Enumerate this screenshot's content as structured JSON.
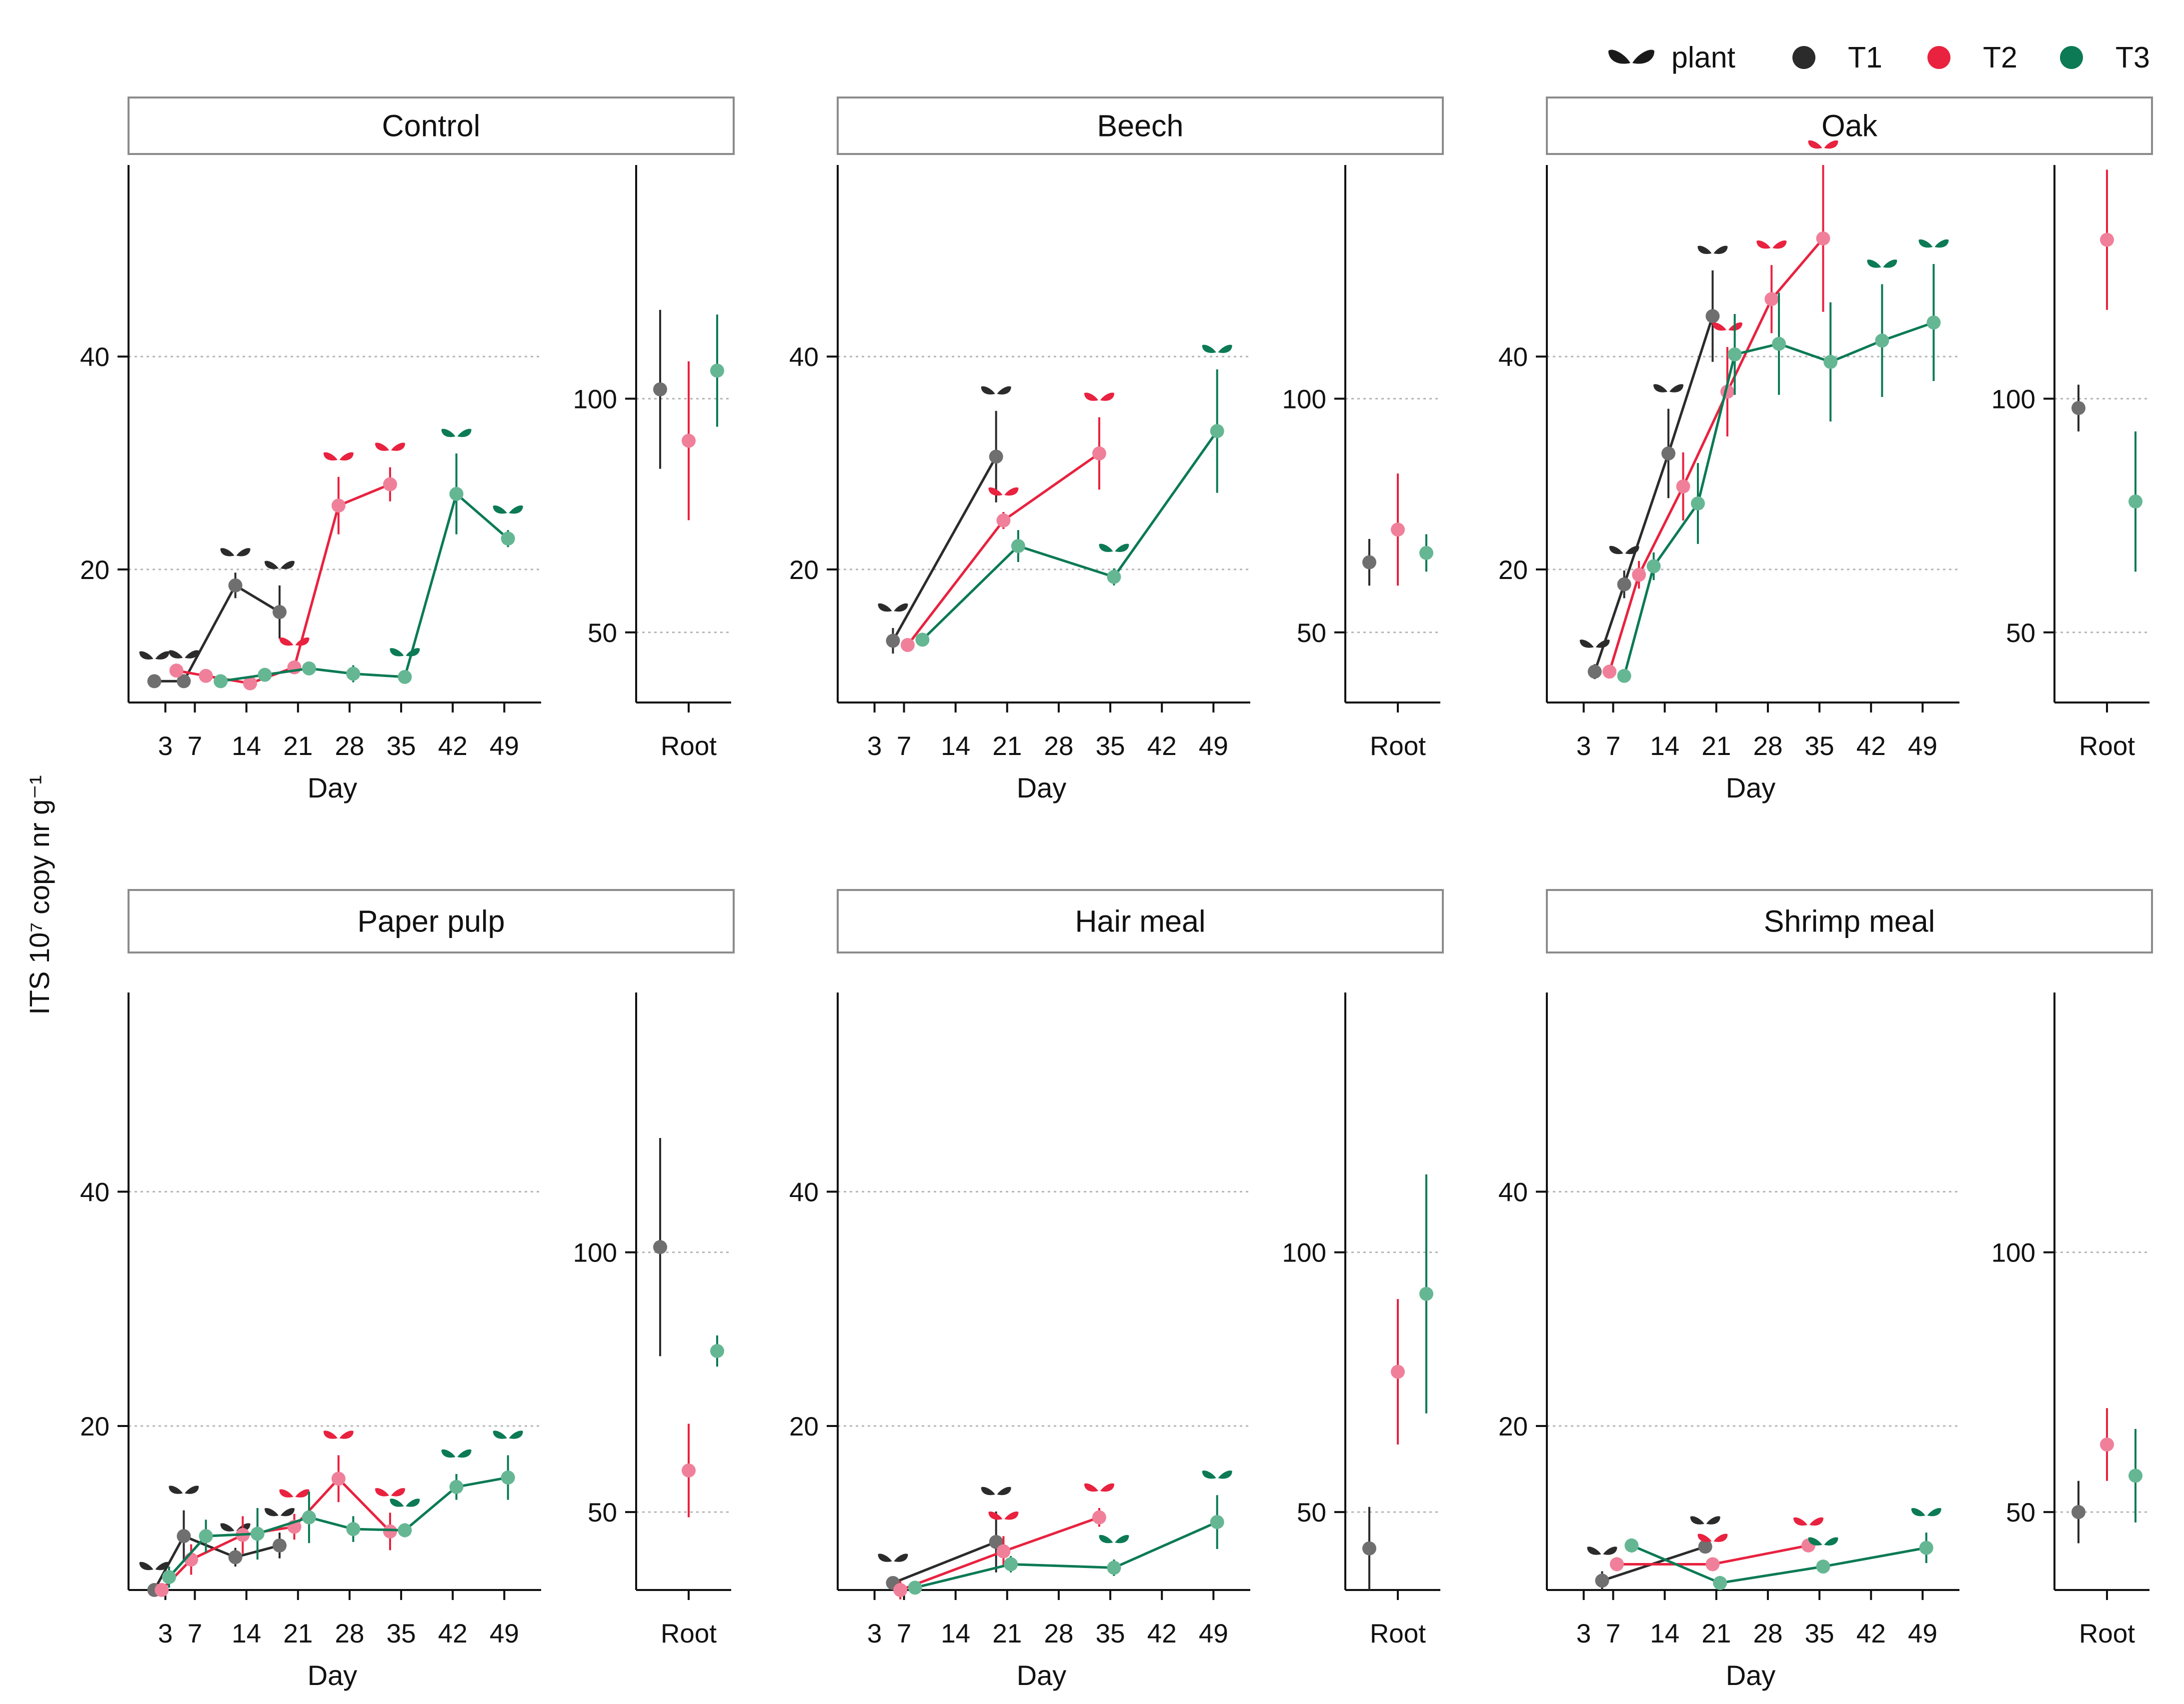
{
  "figure": {
    "y_axis_label": "ITS 10⁷ copy nr g⁻¹",
    "x_axis_label": "Day",
    "root_label": "Root"
  },
  "legend": [
    {
      "key": "plant",
      "label": "plant",
      "color": "#1a1a1a",
      "icon": "seedling-icon"
    },
    {
      "key": "T1",
      "label": "T1",
      "color": "#2b2b2b",
      "icon": "dot-icon"
    },
    {
      "key": "T2",
      "label": "T2",
      "color": "#e8223f",
      "icon": "dot-icon"
    },
    {
      "key": "T3",
      "label": "T3",
      "color": "#0b7a55",
      "icon": "dot-icon"
    }
  ],
  "colors": {
    "T1_line": "#2b2b2b",
    "T1_point": "#6f6f6f",
    "T2_line": "#e8223f",
    "T2_point": "#f0809a",
    "T3_line": "#0b7a55",
    "T3_point": "#65b794"
  },
  "chart_data": [
    {
      "type": "line",
      "title": "Control",
      "xlabel": "Day",
      "ylabel": "ITS 10⁷ copy nr g⁻¹",
      "x_ticks": [
        3,
        7,
        14,
        21,
        28,
        35,
        42,
        49
      ],
      "y_ticks": [
        20,
        40
      ],
      "ylim": [
        7.5,
        58
      ],
      "series": [
        {
          "name": "T1",
          "x": [
            1.5,
            5.5,
            12.5,
            18.5
          ],
          "y": [
            9.5,
            9.5,
            18.5,
            16
          ],
          "err": [
            0.5,
            0.6,
            1.2,
            2.5
          ],
          "plant_at": [
            0,
            1,
            2,
            3
          ]
        },
        {
          "name": "T2",
          "x": [
            4.5,
            8.5,
            14.5,
            20.5,
            26.5,
            33.5
          ],
          "y": [
            10.5,
            10,
            9.3,
            10.8,
            26,
            28
          ],
          "err": [
            0.4,
            0.4,
            0.4,
            0.5,
            2.7,
            1.6
          ],
          "plant_at": [
            3,
            4,
            5
          ]
        },
        {
          "name": "T3",
          "x": [
            10.5,
            16.5,
            22.5,
            28.5,
            35.5,
            42.5,
            49.5
          ],
          "y": [
            9.5,
            10.1,
            10.7,
            10.2,
            9.9,
            27.1,
            22.9
          ],
          "err": [
            0.4,
            0.4,
            0.4,
            0.8,
            0.4,
            3.8,
            0.8
          ],
          "plant_at": [
            4,
            5,
            6
          ]
        }
      ],
      "root": {
        "yticks": [
          50,
          100
        ],
        "ylim": [
          35,
          150
        ],
        "T1": {
          "value": 102,
          "err": 17
        },
        "T2": {
          "value": 91,
          "err": 17
        },
        "T3": {
          "value": 106,
          "err": 12
        }
      }
    },
    {
      "type": "line",
      "title": "Beech",
      "xlabel": "Day",
      "ylabel": "ITS 10⁷ copy nr g⁻¹",
      "x_ticks": [
        3,
        7,
        14,
        21,
        28,
        35,
        42,
        49
      ],
      "y_ticks": [
        20,
        40
      ],
      "ylim": [
        7.5,
        58
      ],
      "series": [
        {
          "name": "T1",
          "x": [
            5.5,
            19.5
          ],
          "y": [
            13.3,
            30.6
          ],
          "err": [
            1.2,
            4.3
          ],
          "plant_at": [
            0,
            1
          ]
        },
        {
          "name": "T2",
          "x": [
            7.5,
            20.5,
            33.5
          ],
          "y": [
            12.9,
            24.6,
            30.9
          ],
          "err": [
            0.4,
            0.8,
            3.4
          ],
          "plant_at": [
            1,
            2
          ]
        },
        {
          "name": "T3",
          "x": [
            9.5,
            22.5,
            35.5,
            49.5
          ],
          "y": [
            13.4,
            22.2,
            19.3,
            33
          ],
          "err": [
            0.5,
            1.5,
            0.8,
            5.8
          ],
          "plant_at": [
            2,
            3
          ]
        }
      ],
      "root": {
        "yticks": [
          50,
          100
        ],
        "ylim": [
          35,
          150
        ],
        "T1": {
          "value": 65,
          "err": 5
        },
        "T2": {
          "value": 72,
          "err": 12
        },
        "T3": {
          "value": 67,
          "err": 4
        }
      }
    },
    {
      "type": "line",
      "title": "Oak",
      "xlabel": "Day",
      "ylabel": "ITS 10⁷ copy nr g⁻¹",
      "x_ticks": [
        3,
        7,
        14,
        21,
        28,
        35,
        42,
        49
      ],
      "y_ticks": [
        20,
        40
      ],
      "ylim": [
        7.5,
        58
      ],
      "series": [
        {
          "name": "T1",
          "x": [
            4.5,
            8.5,
            14.5,
            20.5
          ],
          "y": [
            10.4,
            18.6,
            30.9,
            43.8
          ],
          "err": [
            0.7,
            1.3,
            4.2,
            4.3
          ],
          "plant_at": [
            0,
            1,
            2,
            3
          ]
        },
        {
          "name": "T2",
          "x": [
            6.5,
            10.5,
            16.5,
            22.5,
            28.5,
            35.5
          ],
          "y": [
            10.4,
            19.5,
            27.8,
            36.7,
            45.4,
            51.1
          ],
          "err": [
            0.5,
            1.3,
            3.2,
            4.2,
            3.2,
            6.9
          ],
          "plant_at": [
            3,
            4,
            5
          ]
        },
        {
          "name": "T3",
          "x": [
            8.5,
            12.5,
            18.5,
            23.5,
            29.5,
            36.5,
            43.5,
            50.5
          ],
          "y": [
            10,
            20.3,
            26.2,
            40.2,
            41.2,
            39.5,
            41.5,
            43.2
          ],
          "err": [
            0.4,
            1.3,
            3.8,
            3.8,
            4.8,
            5.6,
            5.3,
            5.5
          ],
          "plant_at": [
            6,
            7
          ]
        }
      ],
      "root": {
        "yticks": [
          50,
          100
        ],
        "ylim": [
          35,
          150
        ],
        "T1": {
          "value": 98,
          "err": 5
        },
        "T2": {
          "value": 134,
          "err": 15
        },
        "T3": {
          "value": 78,
          "err": 15
        }
      }
    },
    {
      "type": "line",
      "title": "Paper pulp",
      "xlabel": "Day",
      "ylabel": "ITS 10⁷ copy nr g⁻¹",
      "x_ticks": [
        3,
        7,
        14,
        21,
        28,
        35,
        42,
        49
      ],
      "y_ticks": [
        20,
        40
      ],
      "ylim": [
        6,
        57
      ],
      "series": [
        {
          "name": "T1",
          "x": [
            1.5,
            5.5,
            12.5,
            18.5
          ],
          "y": [
            6,
            10.6,
            8.8,
            9.8
          ],
          "err": [
            0.3,
            2.2,
            0.8,
            1.1
          ],
          "plant_at": [
            0,
            1,
            2,
            3
          ]
        },
        {
          "name": "T2",
          "x": [
            2.5,
            6.5,
            13.5,
            20.5,
            26.5,
            33.5
          ],
          "y": [
            6,
            8.6,
            10.7,
            11.4,
            15.5,
            11
          ],
          "err": [
            0.4,
            1.3,
            1.6,
            1.1,
            2,
            1.6
          ],
          "plant_at": [
            3,
            4,
            5
          ]
        },
        {
          "name": "T3",
          "x": [
            3.5,
            8.5,
            15.5,
            22.5,
            28.5,
            35.5,
            42.5,
            49.5
          ],
          "y": [
            7.1,
            10.6,
            10.8,
            12.2,
            11.2,
            11.1,
            14.8,
            15.6
          ],
          "err": [
            0.9,
            1.4,
            2.2,
            2.2,
            1.1,
            0.6,
            1.1,
            1.9
          ],
          "plant_at": [
            5,
            6,
            7
          ]
        }
      ],
      "root": {
        "yticks": [
          50,
          100
        ],
        "ylim": [
          35,
          150
        ],
        "T1": {
          "value": 101,
          "err": 21
        },
        "T2": {
          "value": 58,
          "err": 9
        },
        "T3": {
          "value": 81,
          "err": 3
        }
      }
    },
    {
      "type": "line",
      "title": "Hair meal",
      "xlabel": "Day",
      "ylabel": "ITS 10⁷ copy nr g⁻¹",
      "x_ticks": [
        3,
        7,
        14,
        21,
        28,
        35,
        42,
        49
      ],
      "y_ticks": [
        20,
        40
      ],
      "ylim": [
        6,
        57
      ],
      "series": [
        {
          "name": "T1",
          "x": [
            5.5,
            19.5
          ],
          "y": [
            6.6,
            10.1
          ],
          "err": [
            0.4,
            2.6
          ],
          "plant_at": [
            0,
            1
          ]
        },
        {
          "name": "T2",
          "x": [
            6.5,
            20.5,
            33.5
          ],
          "y": [
            6,
            9.3,
            12.2
          ],
          "err": [
            0.8,
            1.3,
            0.8
          ],
          "plant_at": [
            1,
            2
          ]
        },
        {
          "name": "T3",
          "x": [
            8.5,
            21.5,
            35.5,
            49.5
          ],
          "y": [
            6.2,
            8.2,
            7.9,
            11.8
          ],
          "err": [
            0.3,
            0.7,
            0.7,
            2.3
          ],
          "plant_at": [
            2,
            3
          ]
        }
      ],
      "root": {
        "yticks": [
          50,
          100
        ],
        "ylim": [
          35,
          150
        ],
        "T1": {
          "value": 43,
          "err": 8
        },
        "T2": {
          "value": 77,
          "err": 14
        },
        "T3": {
          "value": 92,
          "err": 23
        }
      }
    },
    {
      "type": "line",
      "title": "Shrimp meal",
      "xlabel": "Day",
      "ylabel": "ITS 10⁷ copy nr g⁻¹",
      "x_ticks": [
        3,
        7,
        14,
        21,
        28,
        35,
        42,
        49
      ],
      "y_ticks": [
        20,
        40
      ],
      "ylim": [
        6,
        57
      ],
      "series": [
        {
          "name": "T1",
          "x": [
            5.5,
            19.5
          ],
          "y": [
            6.8,
            9.7
          ],
          "err": [
            0.8,
            0.5
          ],
          "plant_at": [
            0,
            1
          ]
        },
        {
          "name": "T2",
          "x": [
            7.5,
            20.5,
            33.5
          ],
          "y": [
            8.2,
            8.2,
            9.8
          ],
          "err": [
            0.6,
            0.5,
            0.3
          ],
          "plant_at": [
            1,
            2
          ]
        },
        {
          "name": "T3",
          "x": [
            9.5,
            21.5,
            35.5,
            49.5
          ],
          "y": [
            9.8,
            6.6,
            8.0,
            9.6
          ],
          "err": [
            0.6,
            0.6,
            0.4,
            1.3
          ],
          "plant_at": [
            2,
            3
          ]
        }
      ],
      "root": {
        "yticks": [
          50,
          100
        ],
        "ylim": [
          35,
          150
        ],
        "T1": {
          "value": 50,
          "err": 6
        },
        "T2": {
          "value": 63,
          "err": 7
        },
        "T3": {
          "value": 57,
          "err": 9
        }
      }
    }
  ]
}
